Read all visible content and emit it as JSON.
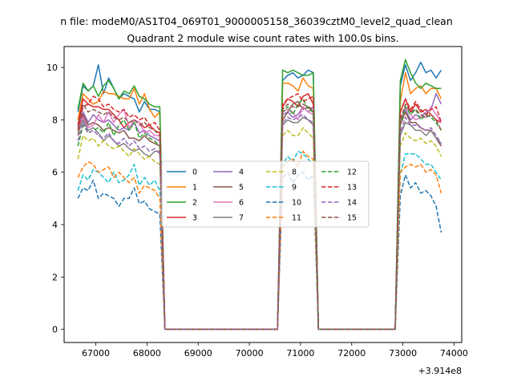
{
  "chart_data": {
    "type": "line",
    "suptitle": "n file: modeM0/AS1T04_069T01_9000005158_36039cztM0_level2_quad_clean",
    "title": "Quadrant 2 module wise count rates with 100.0s bins.",
    "xlabel": "",
    "ylabel": "",
    "x_offset_label": "+3.914e8",
    "xlim": [
      66380,
      74150
    ],
    "ylim": [
      -0.5,
      10.8
    ],
    "x_ticks": [
      {
        "value": 67000,
        "label": "67000"
      },
      {
        "value": 68000,
        "label": "68000"
      },
      {
        "value": 69000,
        "label": "69000"
      },
      {
        "value": 70000,
        "label": "70000"
      },
      {
        "value": 71000,
        "label": "71000"
      },
      {
        "value": 72000,
        "label": "72000"
      },
      {
        "value": 73000,
        "label": "73000"
      },
      {
        "value": 74000,
        "label": "74000"
      }
    ],
    "y_ticks": [
      {
        "value": 0,
        "label": "0"
      },
      {
        "value": 2,
        "label": "2"
      },
      {
        "value": 4,
        "label": "4"
      },
      {
        "value": 6,
        "label": "6"
      },
      {
        "value": 8,
        "label": "8"
      },
      {
        "value": 10,
        "label": "10"
      }
    ],
    "grid": false,
    "legend": {
      "position": "center",
      "columns": 4
    },
    "segments": [
      {
        "start": 66650,
        "count": 17
      },
      {
        "start": 70650,
        "count": 7
      },
      {
        "start": 72950,
        "count": 9
      }
    ],
    "gaps": [
      {
        "x": [
          68350,
          68450,
          70450,
          70550
        ],
        "y": [
          0,
          0,
          0,
          0
        ]
      },
      {
        "x": [
          71350,
          72750,
          72850
        ],
        "y": [
          0,
          0,
          0
        ]
      }
    ],
    "series": [
      {
        "name": "0",
        "color": "#1f77b4",
        "dashed": false,
        "values": [
          8.3,
          9.3,
          9.1,
          9.3,
          10.1,
          9.0,
          9.6,
          9.2,
          8.8,
          9.0,
          8.9,
          8.8,
          8.3,
          8.7,
          8.4,
          8.4,
          8.3,
          9.5,
          9.7,
          9.8,
          9.6,
          9.7,
          9.9,
          9.8,
          9.3,
          10.1,
          9.5,
          9.8,
          10.2,
          9.8,
          9.9,
          9.6,
          9.9
        ]
      },
      {
        "name": "1",
        "color": "#ff7f0e",
        "dashed": false,
        "values": [
          8.0,
          9.0,
          8.8,
          8.6,
          8.7,
          9.1,
          9.0,
          9.0,
          8.9,
          8.8,
          8.8,
          9.2,
          8.6,
          9.0,
          8.4,
          8.1,
          8.3,
          9.4,
          9.4,
          9.3,
          9.1,
          9.6,
          9.3,
          9.2,
          8.7,
          9.8,
          9.0,
          9.2,
          9.3,
          9.0,
          9.2,
          9.2,
          8.8
        ]
      },
      {
        "name": "2",
        "color": "#2ca02c",
        "dashed": false,
        "values": [
          8.4,
          9.4,
          9.1,
          9.3,
          8.9,
          9.3,
          9.5,
          9.2,
          8.8,
          9.1,
          9.0,
          9.3,
          8.9,
          8.8,
          8.6,
          8.5,
          8.5,
          9.9,
          9.8,
          9.9,
          9.8,
          9.7,
          9.7,
          9.8,
          9.5,
          10.3,
          9.8,
          9.4,
          9.2,
          9.4,
          9.3,
          9.2,
          9.2
        ]
      },
      {
        "name": "3",
        "color": "#d62728",
        "dashed": false,
        "values": [
          7.8,
          8.8,
          8.6,
          8.5,
          8.5,
          8.4,
          8.4,
          8.2,
          8.0,
          7.7,
          7.9,
          8.0,
          7.9,
          7.7,
          7.8,
          7.6,
          7.5,
          8.5,
          8.8,
          8.7,
          8.5,
          8.9,
          9.0,
          8.6,
          8.3,
          8.8,
          8.3,
          8.6,
          8.3,
          8.4,
          8.2,
          8.0,
          7.9
        ]
      },
      {
        "name": "4",
        "color": "#9467bd",
        "dashed": false,
        "values": [
          7.6,
          8.3,
          7.9,
          8.2,
          8.0,
          7.9,
          8.0,
          7.8,
          7.6,
          7.7,
          7.6,
          7.9,
          7.5,
          7.6,
          7.4,
          7.3,
          7.2,
          8.2,
          8.3,
          8.1,
          8.2,
          8.5,
          8.3,
          8.5,
          8.0,
          8.4,
          8.0,
          8.2,
          8.1,
          8.3,
          8.4,
          9.0,
          8.6
        ]
      },
      {
        "name": "5",
        "color": "#8c564b",
        "dashed": false,
        "values": [
          7.4,
          8.2,
          7.8,
          7.9,
          7.8,
          7.6,
          7.7,
          7.6,
          7.5,
          7.6,
          7.3,
          7.3,
          7.2,
          7.4,
          7.2,
          7.1,
          7.0,
          8.0,
          8.3,
          8.6,
          8.7,
          8.4,
          8.5,
          8.3,
          7.8,
          8.3,
          7.9,
          7.9,
          7.7,
          7.6,
          7.6,
          7.3,
          7.0
        ]
      },
      {
        "name": "6",
        "color": "#e377c2",
        "dashed": false,
        "values": [
          7.7,
          8.1,
          7.7,
          7.8,
          8.2,
          7.9,
          8.3,
          7.9,
          8.2,
          8.4,
          7.7,
          8.0,
          7.9,
          7.5,
          7.6,
          7.4,
          7.4,
          8.3,
          8.4,
          8.3,
          8.0,
          8.5,
          8.3,
          8.2,
          7.9,
          8.5,
          8.2,
          8.0,
          8.1,
          8.1,
          8.5,
          8.2,
          7.9
        ]
      },
      {
        "name": "7",
        "color": "#7f7f7f",
        "dashed": false,
        "values": [
          7.5,
          8.0,
          7.6,
          7.7,
          7.5,
          7.2,
          7.4,
          7.2,
          7.0,
          7.1,
          6.9,
          6.8,
          6.9,
          6.7,
          6.6,
          6.8,
          6.8,
          7.8,
          8.0,
          7.9,
          7.9,
          8.1,
          8.0,
          7.8,
          7.4,
          7.9,
          7.8,
          7.6,
          7.6,
          7.4,
          7.6,
          7.3,
          7.1
        ]
      },
      {
        "name": "8",
        "color": "#bcbd22",
        "dashed": true,
        "values": [
          6.5,
          7.4,
          7.2,
          7.3,
          7.0,
          7.2,
          7.0,
          6.9,
          7.0,
          6.8,
          6.6,
          6.9,
          6.7,
          6.5,
          6.6,
          6.4,
          6.3,
          7.4,
          7.6,
          7.4,
          7.4,
          7.7,
          7.5,
          7.3,
          7.0,
          7.5,
          7.3,
          7.2,
          7.3,
          7.1,
          7.2,
          7.0,
          6.6
        ]
      },
      {
        "name": "9",
        "color": "#17becf",
        "dashed": true,
        "values": [
          5.3,
          5.9,
          5.7,
          6.1,
          6.0,
          5.8,
          5.6,
          6.0,
          5.6,
          5.7,
          5.9,
          6.3,
          5.5,
          5.8,
          5.5,
          5.7,
          5.3,
          6.3,
          6.6,
          6.4,
          6.8,
          6.7,
          6.5,
          6.3,
          5.9,
          6.7,
          6.7,
          6.7,
          6.5,
          6.3,
          6.3,
          6.0,
          5.7
        ]
      },
      {
        "name": "10",
        "color": "#1f77b4",
        "dashed": true,
        "values": [
          5.0,
          5.4,
          5.3,
          5.7,
          5.0,
          5.2,
          5.1,
          5.0,
          4.7,
          5.0,
          5.0,
          5.4,
          4.8,
          4.9,
          4.6,
          4.5,
          4.4,
          5.8,
          6.0,
          5.6,
          5.9,
          6.0,
          5.7,
          5.9,
          5.1,
          5.9,
          5.4,
          5.6,
          5.2,
          5.3,
          5.1,
          4.7,
          3.7
        ]
      },
      {
        "name": "11",
        "color": "#ff7f0e",
        "dashed": true,
        "values": [
          5.8,
          6.2,
          6.4,
          6.3,
          6.0,
          6.1,
          6.2,
          5.8,
          6.0,
          5.8,
          5.6,
          5.8,
          5.2,
          5.5,
          5.4,
          5.3,
          5.0,
          6.2,
          6.4,
          6.5,
          6.2,
          6.8,
          6.6,
          6.5,
          6.0,
          6.2,
          6.3,
          6.2,
          6.3,
          6.0,
          6.1,
          5.9,
          5.2
        ]
      },
      {
        "name": "12",
        "color": "#2ca02c",
        "dashed": true,
        "values": [
          7.0,
          7.8,
          7.5,
          7.6,
          7.7,
          7.5,
          7.9,
          7.4,
          7.8,
          8.0,
          7.6,
          7.9,
          7.3,
          7.5,
          7.3,
          7.2,
          7.0,
          8.3,
          8.5,
          8.2,
          8.6,
          8.8,
          8.4,
          8.3,
          7.8,
          8.5,
          8.2,
          8.4,
          8.0,
          8.2,
          8.1,
          7.9,
          7.6
        ]
      },
      {
        "name": "13",
        "color": "#d62728",
        "dashed": true,
        "values": [
          7.6,
          8.5,
          8.6,
          8.9,
          8.8,
          8.5,
          8.6,
          8.4,
          8.3,
          8.4,
          8.1,
          8.2,
          8.0,
          8.1,
          7.8,
          7.9,
          7.6,
          8.6,
          8.8,
          8.9,
          9.0,
          8.7,
          8.8,
          8.9,
          8.3,
          8.8,
          8.4,
          8.7,
          8.4,
          8.2,
          8.4,
          8.5,
          7.9
        ]
      },
      {
        "name": "14",
        "color": "#9467bd",
        "dashed": true,
        "values": [
          7.2,
          7.9,
          7.5,
          7.6,
          7.4,
          7.3,
          7.5,
          7.2,
          7.1,
          7.3,
          7.0,
          7.2,
          6.9,
          7.0,
          6.8,
          6.9,
          6.7,
          7.9,
          8.1,
          8.0,
          8.1,
          8.2,
          8.0,
          7.9,
          7.5,
          8.1,
          7.8,
          7.8,
          7.7,
          7.6,
          7.7,
          7.4,
          7.1
        ]
      },
      {
        "name": "15",
        "color": "#8c564b",
        "dashed": true,
        "values": [
          7.7,
          8.6,
          8.3,
          8.4,
          8.3,
          8.2,
          8.3,
          8.1,
          8.0,
          8.1,
          7.9,
          8.0,
          7.8,
          7.9,
          7.7,
          7.6,
          7.4,
          8.4,
          8.6,
          8.5,
          8.5,
          8.6,
          8.5,
          8.4,
          8.0,
          8.6,
          8.3,
          8.4,
          8.2,
          8.1,
          8.2,
          8.0,
          7.6
        ]
      }
    ]
  }
}
